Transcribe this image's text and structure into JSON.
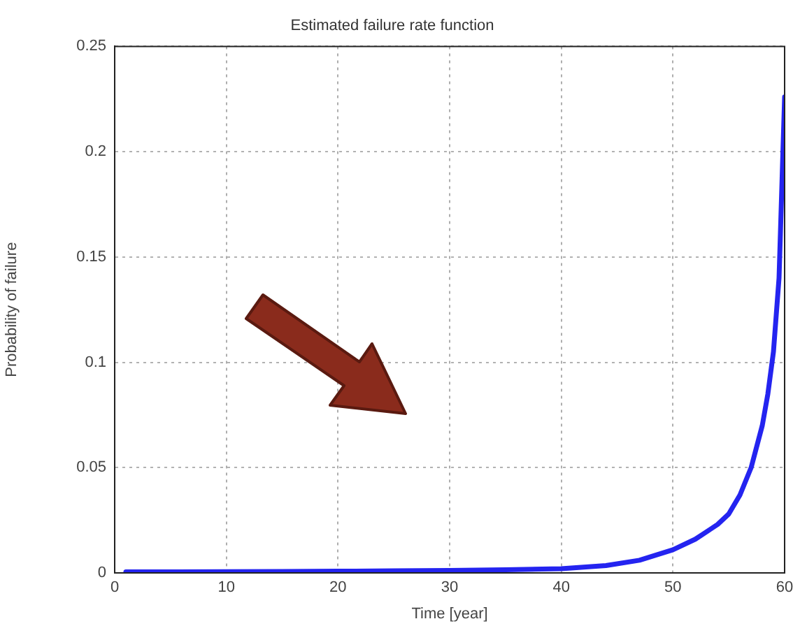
{
  "chart_data": {
    "type": "line",
    "title": "Estimated failure rate function",
    "xlabel": "Time [year]",
    "ylabel": "Probability of failure",
    "series": [
      {
        "color": "#2424f0",
        "x": [
          1,
          5,
          10,
          15,
          20,
          25,
          30,
          35,
          40,
          44,
          47,
          50,
          52,
          54,
          55,
          56,
          57,
          58,
          58.5,
          59,
          59.5,
          60
        ],
        "values": [
          0.0005,
          0.0005,
          0.0006,
          0.0007,
          0.0008,
          0.001,
          0.0012,
          0.0015,
          0.002,
          0.0035,
          0.006,
          0.011,
          0.016,
          0.023,
          0.028,
          0.037,
          0.05,
          0.07,
          0.085,
          0.105,
          0.14,
          0.226
        ]
      }
    ],
    "xlim": [
      0,
      60
    ],
    "xticks": [
      0,
      10,
      20,
      30,
      40,
      50,
      60
    ],
    "ylim": [
      0,
      0.25
    ],
    "yticks": [
      0,
      0.05,
      0.1,
      0.15,
      0.2,
      0.25
    ],
    "grid": true,
    "legend": false,
    "marker": "none",
    "line_style": "solid"
  }
}
